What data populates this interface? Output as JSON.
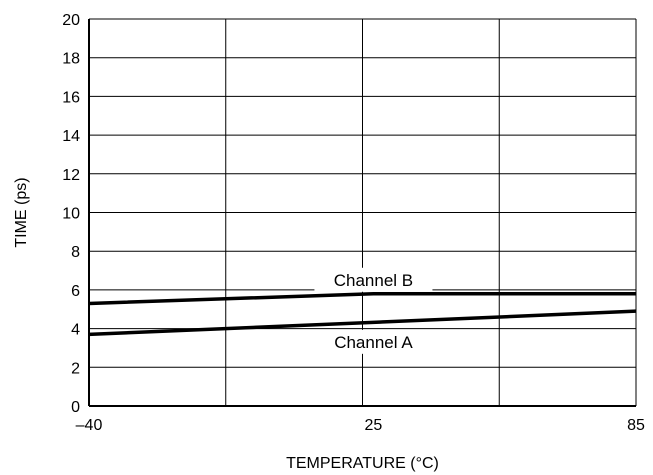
{
  "chart_data": {
    "type": "line",
    "xlabel": "TEMPERATURE (°C)",
    "ylabel": "TIME (ps)",
    "xlim": [
      -40,
      85
    ],
    "ylim": [
      0,
      20
    ],
    "x_ticks": [
      -40,
      25,
      85
    ],
    "x_tick_labels": [
      "–40",
      "25",
      "85"
    ],
    "y_ticks": [
      0,
      2,
      4,
      6,
      8,
      10,
      12,
      14,
      16,
      18,
      20
    ],
    "grid": true,
    "series": [
      {
        "name": "Channel B",
        "x": [
          -40,
          25,
          85
        ],
        "y": [
          5.3,
          5.8,
          5.8
        ]
      },
      {
        "name": "Channel A",
        "x": [
          -40,
          85
        ],
        "y": [
          3.7,
          4.9
        ]
      }
    ],
    "colors": {
      "line": "#000000",
      "grid": "#000000",
      "background": "#ffffff"
    }
  }
}
